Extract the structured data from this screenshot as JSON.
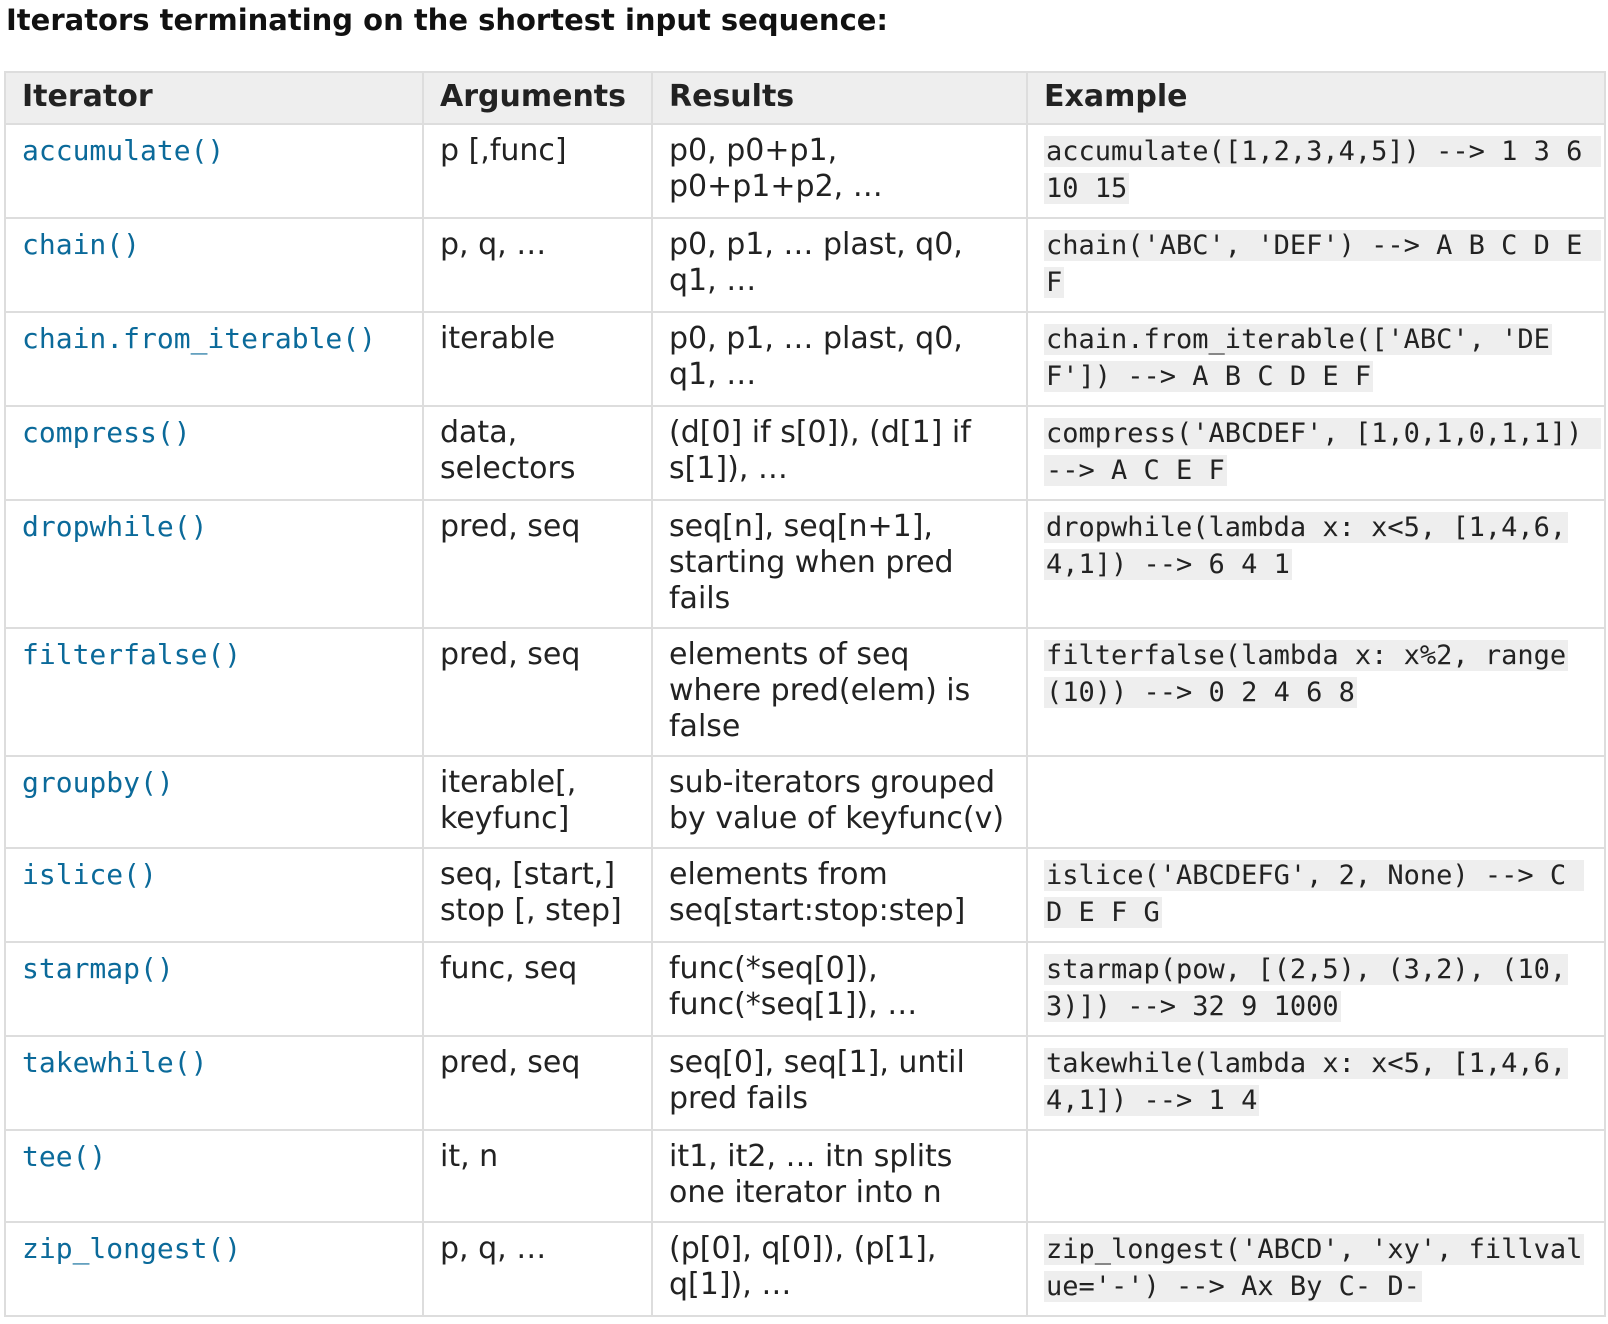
{
  "heading": "Iterators terminating on the shortest input sequence:",
  "table": {
    "headers": [
      "Iterator",
      "Arguments",
      "Results",
      "Example"
    ],
    "rows": [
      {
        "iterator": "accumulate()",
        "arguments": "p [,func]",
        "results": "p0, p0+p1, p0+p1+p2, …",
        "example": "accumulate([1,2,3,4,5]) --> 1 3 6 10 15"
      },
      {
        "iterator": "chain()",
        "arguments": "p, q, …",
        "results": "p0, p1, … plast, q0, q1, …",
        "example": "chain('ABC', 'DEF') --> A B C D E F"
      },
      {
        "iterator": "chain.from_iterable()",
        "arguments": "iterable",
        "results": "p0, p1, … plast, q0, q1, …",
        "example": "chain.from_iterable(['ABC', 'DEF']) --> A B C D E F"
      },
      {
        "iterator": "compress()",
        "arguments": "data, selectors",
        "results": "(d[0] if s[0]), (d[1] if s[1]), …",
        "example": "compress('ABCDEF', [1,0,1,0,1,1]) --> A C E F"
      },
      {
        "iterator": "dropwhile()",
        "arguments": "pred, seq",
        "results": "seq[n], seq[n+1], starting when pred fails",
        "example": "dropwhile(lambda x: x<5, [1,4,6,4,1]) --> 6 4 1"
      },
      {
        "iterator": "filterfalse()",
        "arguments": "pred, seq",
        "results": "elements of seq where pred(elem) is false",
        "example": "filterfalse(lambda x: x%2, range(10)) --> 0 2 4 6 8"
      },
      {
        "iterator": "groupby()",
        "arguments": "iterable[, keyfunc]",
        "results": "sub-iterators grouped by value of keyfunc(v)",
        "example": ""
      },
      {
        "iterator": "islice()",
        "arguments": "seq, [start,] stop [, step]",
        "results": "elements from seq[start:stop:step]",
        "example": "islice('ABCDEFG', 2, None) --> C D E F G"
      },
      {
        "iterator": "starmap()",
        "arguments": "func, seq",
        "results": "func(*seq[0]), func(*seq[1]), …",
        "example": "starmap(pow, [(2,5), (3,2), (10,3)]) --> 32 9 1000"
      },
      {
        "iterator": "takewhile()",
        "arguments": "pred, seq",
        "results": "seq[0], seq[1], until pred fails",
        "example": "takewhile(lambda x: x<5, [1,4,6,4,1]) --> 1 4"
      },
      {
        "iterator": "tee()",
        "arguments": "it, n",
        "results": "it1, it2, … itn splits one iterator into n",
        "example": ""
      },
      {
        "iterator": "zip_longest()",
        "arguments": "p, q, …",
        "results": "(p[0], q[0]), (p[1], q[1]), …",
        "example": "zip_longest('ABCD', 'xy', fillvalue='-') --> Ax By C- D-"
      }
    ]
  }
}
